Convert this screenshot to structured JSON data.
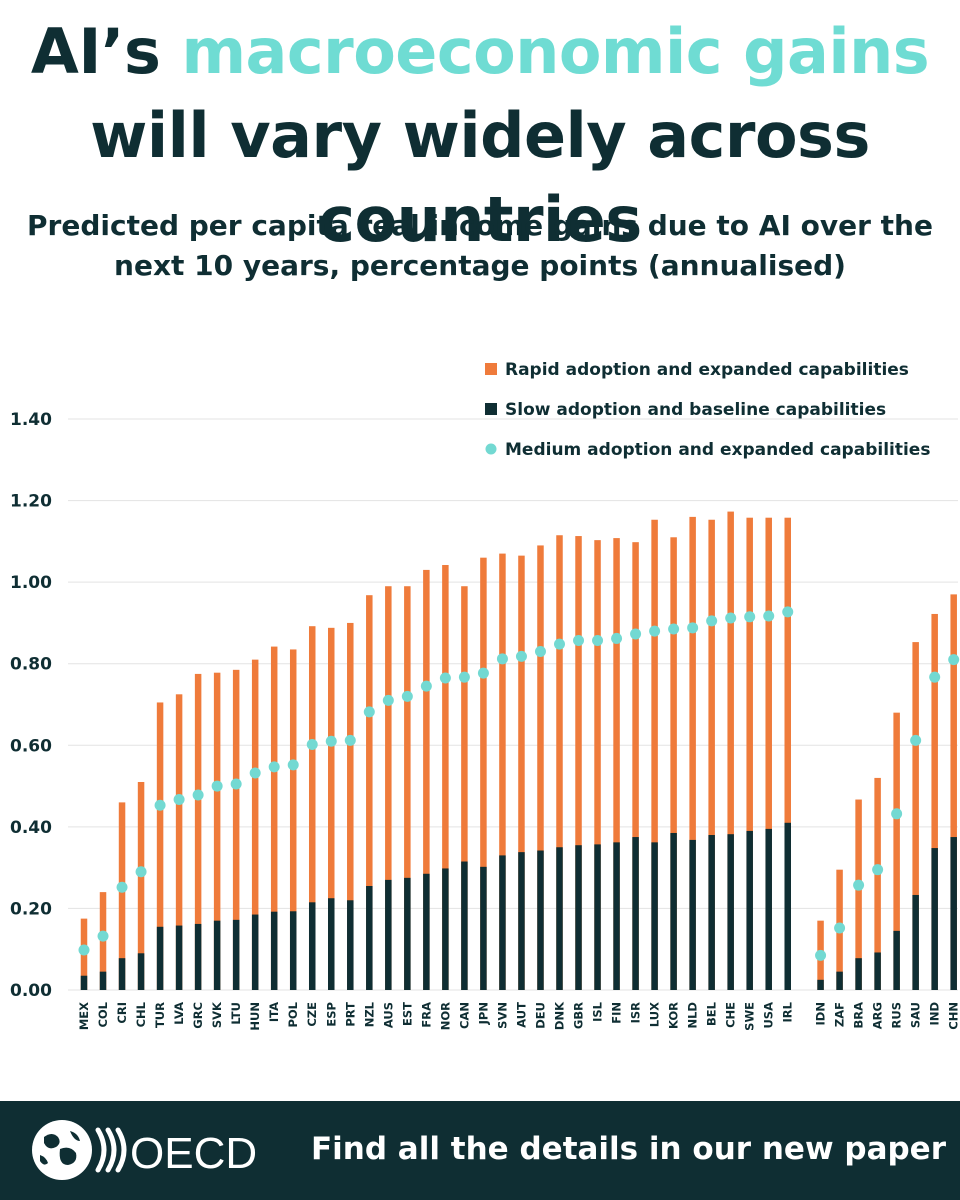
{
  "title": {
    "part1": "AI’s ",
    "highlight": "macroeconomic gains",
    "part2": " will vary widely across countries"
  },
  "subtitle": "Predicted per capita real income gains due to AI over the next 10 years, percentage points (annualised)",
  "footer": {
    "text": "Find all the details in our new paper",
    "logo_text": "OECD"
  },
  "colors": {
    "rapid": "#ef7b3b",
    "slow": "#0f2e33",
    "medium": "#73d9d2",
    "grid": "#e3e3e3",
    "title": "#0f2e33",
    "highlight": "#6fdcd3"
  },
  "chart_data": {
    "type": "bar",
    "stacked_overlay": true,
    "title": "Predicted per capita real income gains due to AI over the next 10 years, percentage points (annualised)",
    "ylim": [
      0,
      1.4
    ],
    "yticks": [
      "0.00",
      "0.20",
      "0.40",
      "0.60",
      "0.80",
      "1.00",
      "1.20",
      "1.40"
    ],
    "grid": "horizontal",
    "legend_position": "top-right",
    "legend": [
      {
        "key": "rapid",
        "label": "Rapid adoption and expanded capabilities",
        "marker": "square"
      },
      {
        "key": "slow",
        "label": "Slow adoption and baseline capabilities",
        "marker": "square"
      },
      {
        "key": "medium",
        "label": "Medium adoption and expanded capabilities",
        "marker": "dot"
      }
    ],
    "group_breaks_after": [
      "IRL"
    ],
    "categories": [
      "MEX",
      "COL",
      "CRI",
      "CHL",
      "TUR",
      "LVA",
      "GRC",
      "SVK",
      "LTU",
      "HUN",
      "ITA",
      "POL",
      "CZE",
      "ESP",
      "PRT",
      "NZL",
      "AUS",
      "EST",
      "FRA",
      "NOR",
      "CAN",
      "JPN",
      "SVN",
      "AUT",
      "DEU",
      "DNK",
      "GBR",
      "ISL",
      "FIN",
      "ISR",
      "LUX",
      "KOR",
      "NLD",
      "BEL",
      "CHE",
      "SWE",
      "USA",
      "IRL",
      "IDN",
      "ZAF",
      "BRA",
      "ARG",
      "RUS",
      "SAU",
      "IND",
      "CHN"
    ],
    "series": [
      {
        "name": "Rapid adoption and expanded capabilities",
        "key": "rapid",
        "values": [
          0.175,
          0.24,
          0.46,
          0.51,
          0.705,
          0.725,
          0.775,
          0.778,
          0.785,
          0.81,
          0.842,
          0.835,
          0.892,
          0.888,
          0.9,
          0.968,
          0.99,
          0.99,
          1.03,
          1.042,
          0.99,
          1.06,
          1.07,
          1.065,
          1.09,
          1.115,
          1.113,
          1.103,
          1.108,
          1.098,
          1.153,
          1.11,
          1.16,
          1.153,
          1.173,
          1.158,
          1.158,
          1.158,
          0.17,
          0.295,
          0.467,
          0.52,
          0.68,
          0.853,
          0.922,
          0.97
        ]
      },
      {
        "name": "Slow adoption and baseline capabilities",
        "key": "slow",
        "values": [
          0.035,
          0.045,
          0.078,
          0.09,
          0.155,
          0.158,
          0.162,
          0.17,
          0.172,
          0.185,
          0.192,
          0.193,
          0.215,
          0.225,
          0.22,
          0.255,
          0.27,
          0.275,
          0.285,
          0.298,
          0.315,
          0.302,
          0.33,
          0.338,
          0.342,
          0.35,
          0.355,
          0.357,
          0.362,
          0.375,
          0.362,
          0.385,
          0.368,
          0.38,
          0.382,
          0.39,
          0.395,
          0.41,
          0.025,
          0.045,
          0.078,
          0.092,
          0.145,
          0.233,
          0.348,
          0.375
        ]
      },
      {
        "name": "Medium adoption and expanded capabilities",
        "key": "medium",
        "values": [
          0.098,
          0.132,
          0.252,
          0.29,
          0.453,
          0.467,
          0.478,
          0.5,
          0.505,
          0.532,
          0.547,
          0.552,
          0.602,
          0.61,
          0.612,
          0.682,
          0.71,
          0.72,
          0.745,
          0.765,
          0.767,
          0.777,
          0.812,
          0.818,
          0.83,
          0.848,
          0.857,
          0.857,
          0.862,
          0.873,
          0.88,
          0.885,
          0.888,
          0.905,
          0.912,
          0.915,
          0.917,
          0.927,
          0.085,
          0.152,
          0.257,
          0.295,
          0.432,
          0.612,
          0.767,
          0.81
        ]
      }
    ]
  }
}
